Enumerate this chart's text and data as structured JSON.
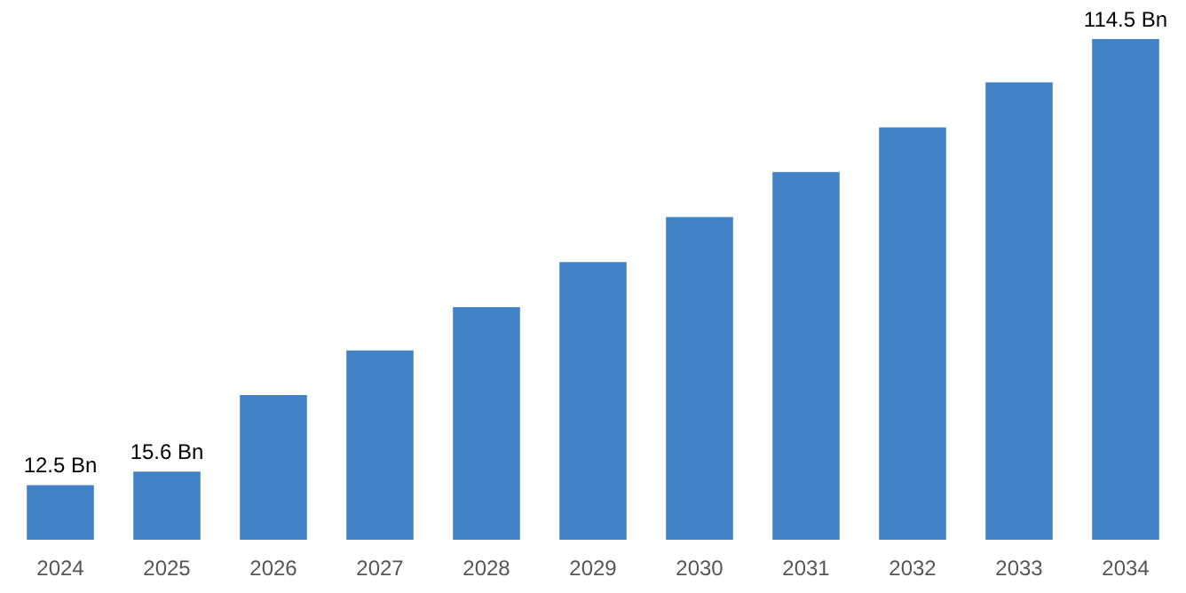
{
  "chart_data": {
    "type": "bar",
    "categories": [
      "2024",
      "2025",
      "2026",
      "2027",
      "2028",
      "2029",
      "2030",
      "2031",
      "2032",
      "2033",
      "2034"
    ],
    "values": [
      12.5,
      15.6,
      33.1,
      43.3,
      53.2,
      63.5,
      73.8,
      84.1,
      94.3,
      104.6,
      114.5
    ],
    "value_labels": [
      "12.5 Bn",
      "15.6 Bn",
      null,
      null,
      null,
      null,
      null,
      null,
      null,
      null,
      "114.5 Bn"
    ],
    "color": "#4282c6"
  }
}
